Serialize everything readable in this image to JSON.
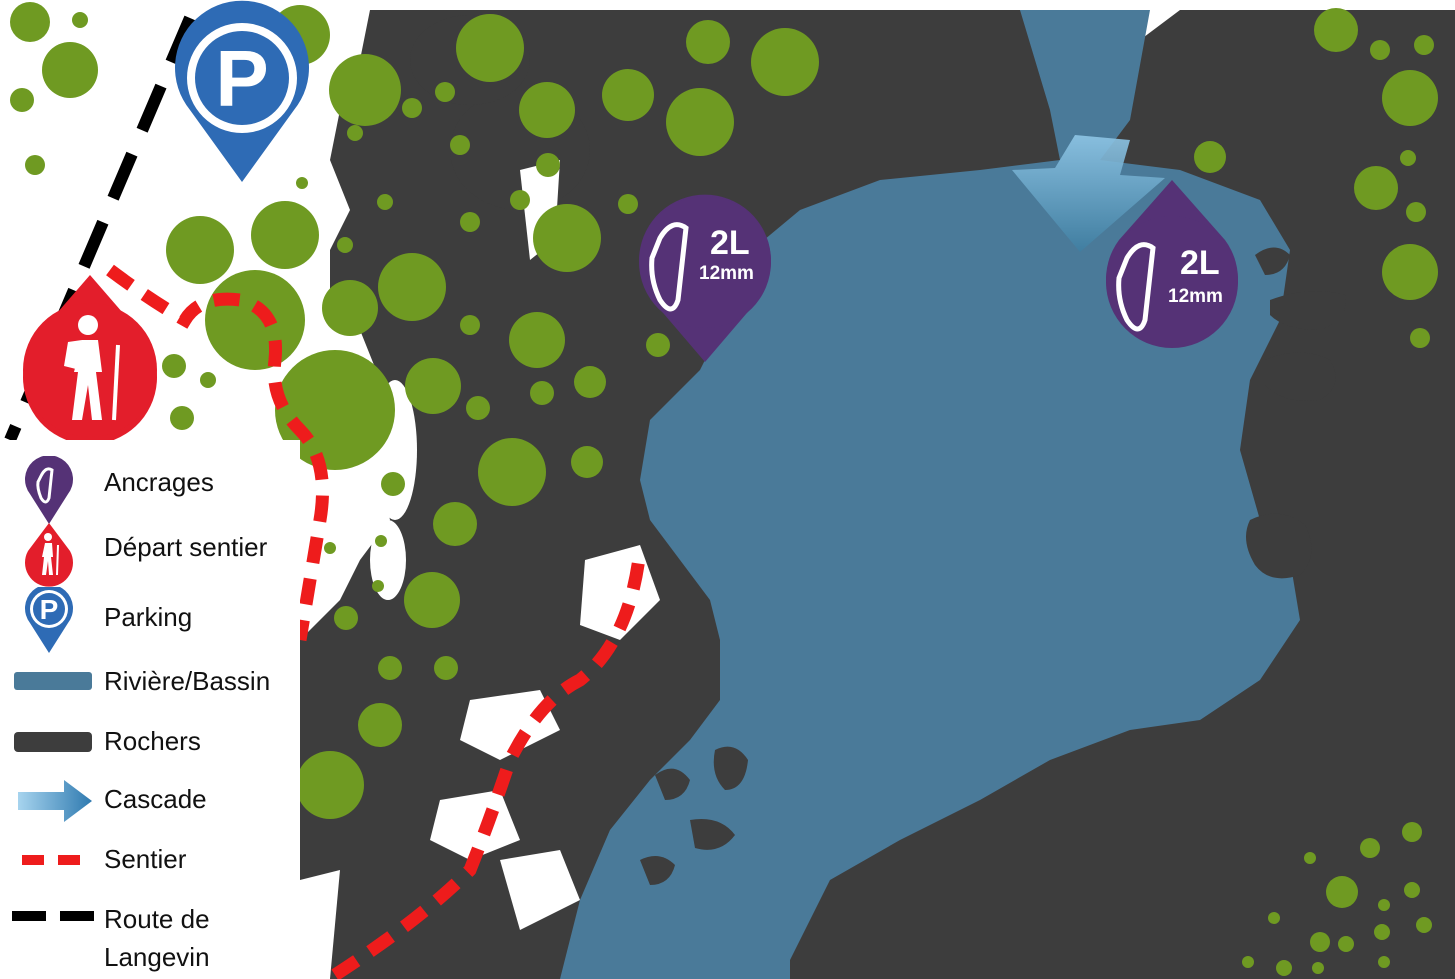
{
  "map": {
    "anchors": [
      {
        "id": "anchor-left",
        "count_label": "2L",
        "size_label": "12mm"
      },
      {
        "id": "anchor-right",
        "count_label": "2L",
        "size_label": "12mm"
      }
    ],
    "parking_marker_letter": "P",
    "colors": {
      "rocks": "#3d3d3d",
      "water": "#4a7a99",
      "vegetation": "#6f9a22",
      "trail": "#ee1c1c",
      "road": "#000000",
      "anchor_marker": "#553276",
      "trail_start_marker": "#e31e2b",
      "parking_marker": "#2e6bb5",
      "cascade_arrow": "#6fb1da"
    }
  },
  "legend": {
    "items": [
      {
        "key": "anchors",
        "label": "Ancrages",
        "icon": "carabiner-marker-icon"
      },
      {
        "key": "trail_start",
        "label": "Départ sentier",
        "icon": "hiker-marker-icon"
      },
      {
        "key": "parking",
        "label": "Parking",
        "icon": "parking-marker-icon"
      },
      {
        "key": "river",
        "label": "Rivière/Bassin",
        "icon": "river-swatch-icon"
      },
      {
        "key": "rocks",
        "label": "Rochers",
        "icon": "rocks-swatch-icon"
      },
      {
        "key": "cascade",
        "label": "Cascade",
        "icon": "cascade-arrow-icon"
      },
      {
        "key": "trail",
        "label": "Sentier",
        "icon": "trail-dash-icon"
      },
      {
        "key": "road",
        "label": "Route de\nLangevin",
        "icon": "road-dash-icon"
      }
    ],
    "parking_letter": "P"
  }
}
